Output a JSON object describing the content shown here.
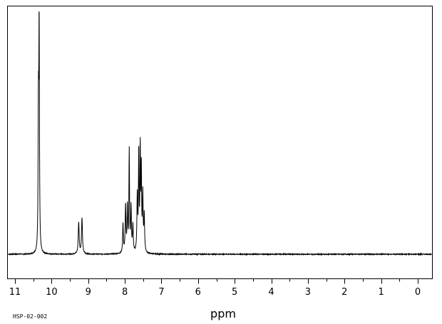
{
  "chart_data": {
    "type": "line",
    "title": "",
    "xlabel": "ppm",
    "ylabel": "",
    "sample_code": "HSP-02-002",
    "x_reversed": true,
    "xlim": [
      11.1,
      -0.4
    ],
    "ylim": [
      -0.12,
      1.0
    ],
    "grid": false,
    "xticks": [
      11,
      10,
      9,
      8,
      7,
      6,
      5,
      4,
      3,
      2,
      1,
      0
    ],
    "xtick_labels": [
      "11",
      "10",
      "9",
      "8",
      "7",
      "6",
      "5",
      "4",
      "3",
      "2",
      "1",
      "0"
    ],
    "series": [
      {
        "color": "#000000",
        "peaks": [
          {
            "ppm": 10.34,
            "height": 1.0,
            "width": 0.01
          },
          {
            "ppm": 10.36,
            "height": 0.6,
            "width": 0.01
          },
          {
            "ppm": 9.26,
            "height": 0.14,
            "width": 0.015
          },
          {
            "ppm": 9.17,
            "height": 0.16,
            "width": 0.015
          },
          {
            "ppm": 8.05,
            "height": 0.13,
            "width": 0.012
          },
          {
            "ppm": 7.98,
            "height": 0.21,
            "width": 0.012
          },
          {
            "ppm": 7.93,
            "height": 0.2,
            "width": 0.012
          },
          {
            "ppm": 7.88,
            "height": 0.45,
            "width": 0.01
          },
          {
            "ppm": 7.83,
            "height": 0.2,
            "width": 0.012
          },
          {
            "ppm": 7.78,
            "height": 0.12,
            "width": 0.012
          },
          {
            "ppm": 7.66,
            "height": 0.25,
            "width": 0.012
          },
          {
            "ppm": 7.62,
            "height": 0.44,
            "width": 0.01
          },
          {
            "ppm": 7.58,
            "height": 0.45,
            "width": 0.01
          },
          {
            "ppm": 7.55,
            "height": 0.35,
            "width": 0.01
          },
          {
            "ppm": 7.51,
            "height": 0.25,
            "width": 0.012
          },
          {
            "ppm": 7.47,
            "height": 0.16,
            "width": 0.012
          }
        ]
      }
    ]
  }
}
